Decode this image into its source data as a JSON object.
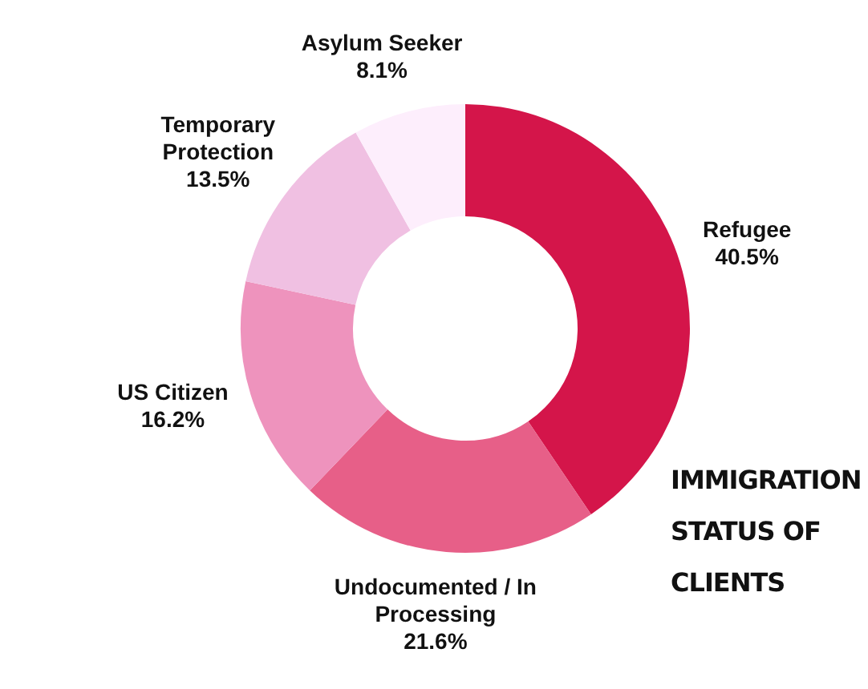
{
  "chart_data": {
    "type": "donut",
    "title": "IMMIGRATION STATUS OF CLIENTS",
    "categories": [
      "Refugee",
      "Undocumented / In Processing",
      "US Citizen",
      "Temporary Protection",
      "Asylum Seeker"
    ],
    "values": [
      40.5,
      21.6,
      16.2,
      13.5,
      8.1
    ],
    "value_labels": [
      "40.5%",
      "21.6%",
      "16.2%",
      "13.5%",
      "8.1%"
    ],
    "colors": [
      "#d4154a",
      "#e75f88",
      "#ee93bd",
      "#f0c0e2",
      "#fdeefc"
    ],
    "legend": false
  }
}
